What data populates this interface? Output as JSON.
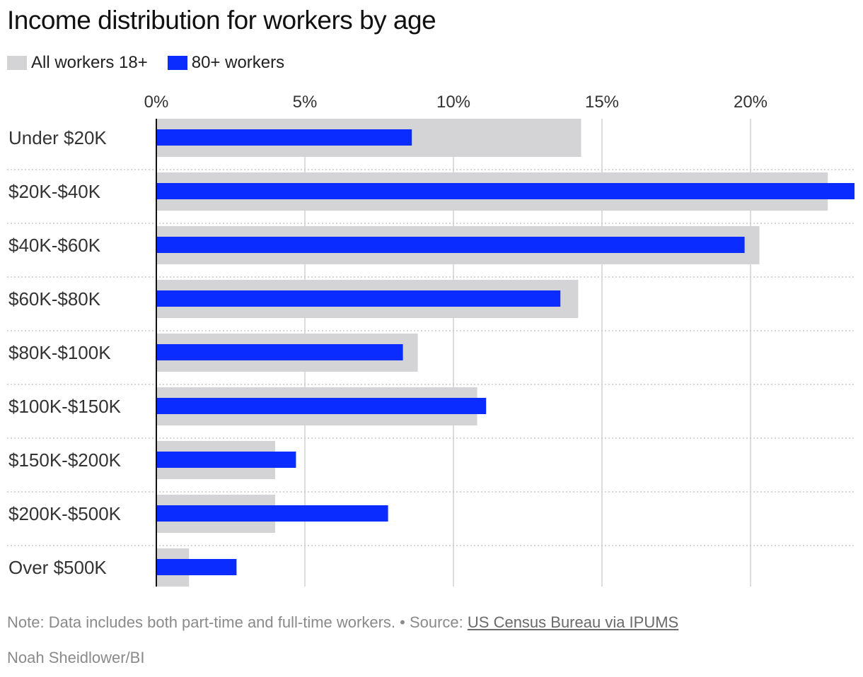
{
  "page": {
    "title": "Income distribution for workers by age",
    "note_text": "Note: Data includes both part-time and full-time workers.",
    "separator": " • ",
    "source_prefix": "Source: ",
    "source_link": "US Census Bureau via IPUMS",
    "credit": "Noah Sheidlower/BI"
  },
  "chart_data": {
    "type": "bar",
    "orientation": "horizontal",
    "title": "Income distribution for workers by age",
    "categories": [
      "Under $20K",
      "$20K-$40K",
      "$40K-$60K",
      "$60K-$80K",
      "$80K-$100K",
      "$100K-$150K",
      "$150K-$200K",
      "$200K-$500K",
      "Over $500K"
    ],
    "series": [
      {
        "name": "All workers 18+",
        "color": "#d4d4d6",
        "values": [
          14.3,
          22.6,
          20.3,
          14.2,
          8.8,
          10.8,
          4.0,
          4.0,
          1.1
        ]
      },
      {
        "name": "80+ workers",
        "color": "#0a2cff",
        "values": [
          8.6,
          23.5,
          19.8,
          13.6,
          8.3,
          11.1,
          4.7,
          7.8,
          2.7
        ]
      }
    ],
    "x_ticks": [
      0,
      5,
      10,
      15,
      20
    ],
    "x_tick_labels": [
      "0%",
      "5%",
      "10%",
      "15%",
      "20%"
    ],
    "xlim": [
      0,
      23.5
    ],
    "xlabel": "",
    "ylabel": "",
    "grid": true,
    "legend_position": "top-left"
  }
}
